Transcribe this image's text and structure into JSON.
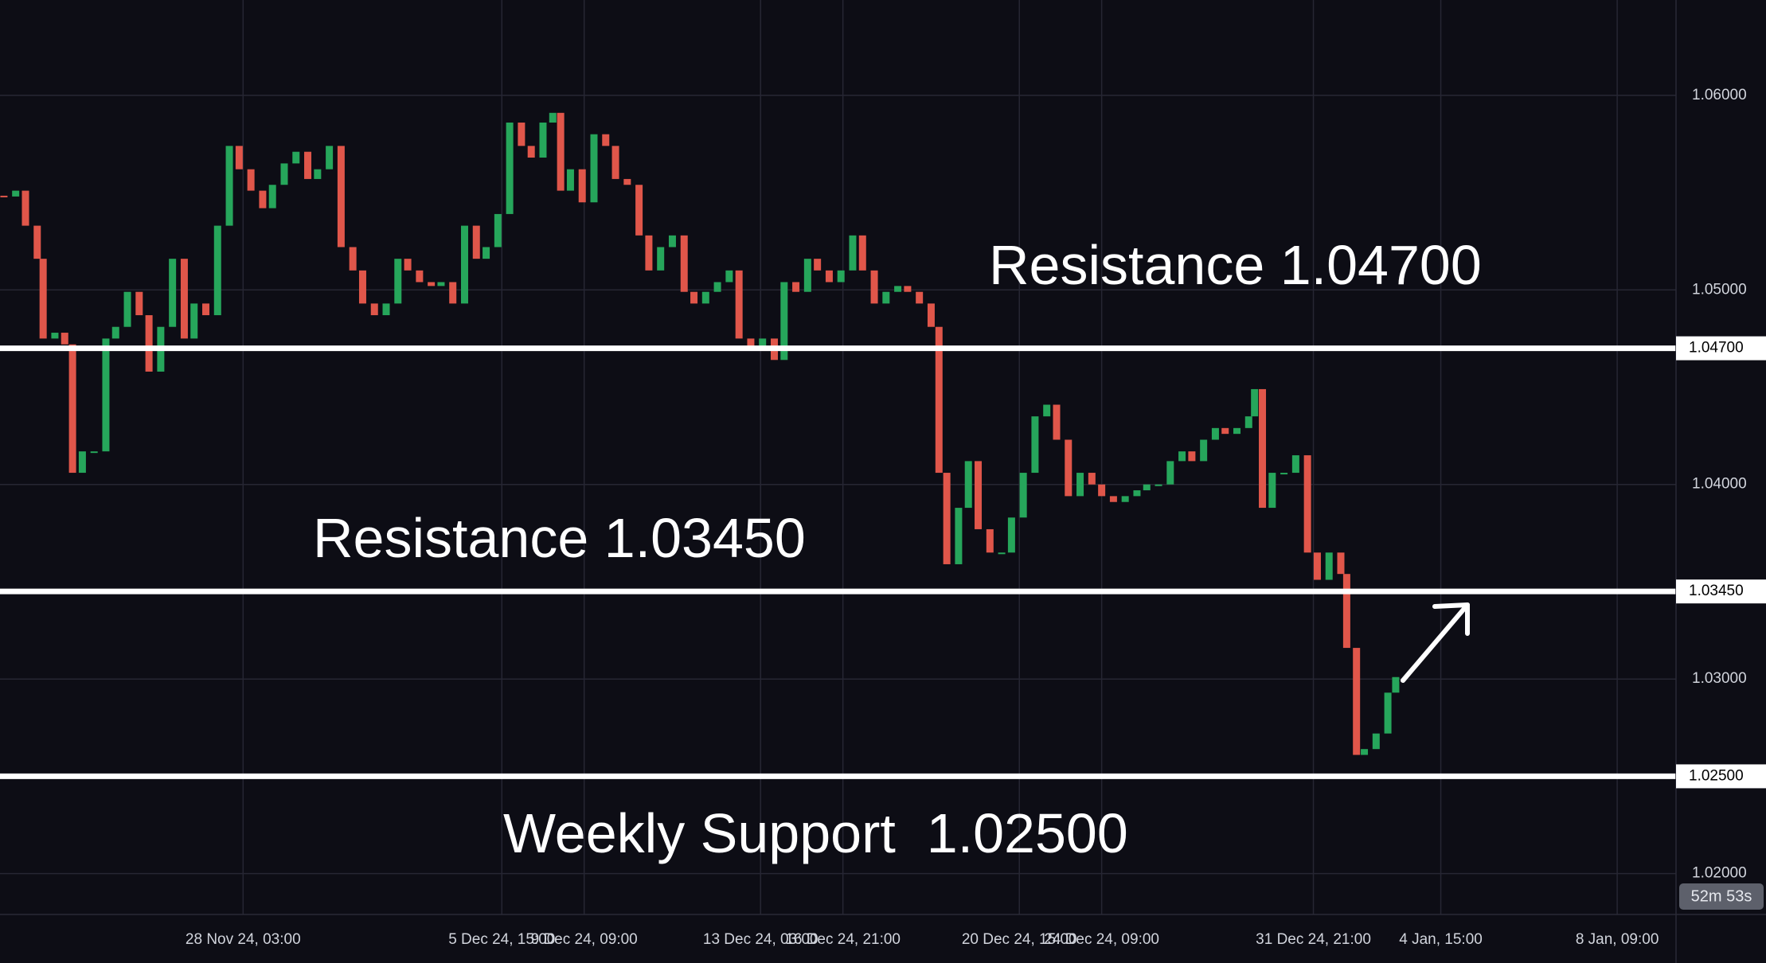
{
  "chart_data": {
    "type": "candlestick",
    "grid": true,
    "background": "#0d0d15",
    "grid_color": "#262633",
    "up_color": "#26a65b",
    "down_color": "#e0564a",
    "level_color": "#ffffff",
    "xlim": [
      -124,
      731
    ],
    "xticks": [
      {
        "value": 0,
        "label": "28 Nov 24, 03:00"
      },
      {
        "value": 132,
        "label": "5 Dec 24, 15:00"
      },
      {
        "value": 174,
        "label": "9 Dec 24, 09:00"
      },
      {
        "value": 264,
        "label": "13 Dec 24, 03:00"
      },
      {
        "value": 306,
        "label": "16 Dec 24, 21:00"
      },
      {
        "value": 396,
        "label": "20 Dec 24, 15:00"
      },
      {
        "value": 438,
        "label": "24 Dec 24, 09:00"
      },
      {
        "value": 546,
        "label": "31 Dec 24, 21:00"
      },
      {
        "value": 611,
        "label": "4 Jan, 15:00"
      },
      {
        "value": 701,
        "label": "8 Jan, 09:00"
      }
    ],
    "ylim": [
      1.0179,
      1.0649
    ],
    "yticks": [
      {
        "value": 1.02,
        "label": "1.02000"
      },
      {
        "value": 1.03,
        "label": "1.03000"
      },
      {
        "value": 1.04,
        "label": "1.04000"
      },
      {
        "value": 1.05,
        "label": "1.05000"
      },
      {
        "value": 1.06,
        "label": "1.06000"
      }
    ],
    "levels": [
      {
        "value": 1.047,
        "label": "1.04700"
      },
      {
        "value": 1.0345,
        "label": "1.03450"
      },
      {
        "value": 1.025,
        "label": "1.02500"
      }
    ],
    "annotations": [
      "Resistance 1.04700",
      "Resistance 1.03450",
      "Weekly Support  1.02500"
    ],
    "countdown": "52m 53s",
    "x": [
      -122,
      -116,
      -111,
      -105,
      -102,
      -96,
      -91,
      -87,
      -82,
      -76,
      -70,
      -65,
      -59,
      -53,
      -48,
      -42,
      -36,
      -30,
      -25,
      -19,
      -13,
      -7,
      -2,
      4,
      10,
      15,
      21,
      27,
      33,
      38,
      44,
      50,
      56,
      61,
      67,
      73,
      79,
      84,
      90,
      96,
      101,
      107,
      113,
      119,
      124,
      130,
      136,
      142,
      147,
      153,
      158,
      162,
      167,
      173,
      179,
      185,
      190,
      196,
      202,
      207,
      213,
      219,
      225,
      230,
      236,
      242,
      248,
      253,
      259,
      265,
      271,
      276,
      282,
      288,
      293,
      299,
      305,
      311,
      316,
      322,
      328,
      334,
      339,
      345,
      351,
      355,
      359,
      365,
      370,
      375,
      381,
      387,
      392,
      398,
      404,
      410,
      415,
      421,
      427,
      433,
      438,
      444,
      450,
      456,
      461,
      467,
      473,
      479,
      484,
      490,
      496,
      501,
      507,
      513,
      516,
      520,
      525,
      531,
      537,
      543,
      548,
      554,
      560,
      563,
      568,
      572,
      578,
      584,
      588
    ],
    "values": [
      1.0548,
      1.0551,
      1.0533,
      1.0516,
      1.0475,
      1.0478,
      1.0472,
      1.0406,
      1.0417,
      1.0417,
      1.0475,
      1.0481,
      1.0499,
      1.0487,
      1.0458,
      1.0481,
      1.0516,
      1.0475,
      1.0493,
      1.0487,
      1.0533,
      1.0574,
      1.0562,
      1.0551,
      1.0542,
      1.0554,
      1.0565,
      1.0571,
      1.0557,
      1.0562,
      1.0574,
      1.0522,
      1.051,
      1.0493,
      1.0487,
      1.0493,
      1.0516,
      1.051,
      1.0504,
      1.0502,
      1.0504,
      1.0493,
      1.0533,
      1.0516,
      1.0522,
      1.0539,
      1.0586,
      1.0574,
      1.0568,
      1.0586,
      1.0591,
      1.0551,
      1.0562,
      1.0545,
      1.058,
      1.0574,
      1.0557,
      1.0554,
      1.0528,
      1.051,
      1.0522,
      1.0528,
      1.0499,
      1.0493,
      1.0499,
      1.0504,
      1.051,
      1.0475,
      1.047,
      1.0475,
      1.0464,
      1.0504,
      1.0499,
      1.0516,
      1.051,
      1.0504,
      1.051,
      1.0528,
      1.051,
      1.0493,
      1.0499,
      1.0502,
      1.0499,
      1.0493,
      1.0481,
      1.0406,
      1.0359,
      1.0388,
      1.0412,
      1.0377,
      1.0365,
      1.0365,
      1.0383,
      1.0406,
      1.0435,
      1.0441,
      1.0423,
      1.0394,
      1.0406,
      1.04,
      1.0394,
      1.0391,
      1.0394,
      1.0397,
      1.04,
      1.04,
      1.0412,
      1.0417,
      1.0412,
      1.0423,
      1.0429,
      1.0426,
      1.0429,
      1.0435,
      1.0449,
      1.0388,
      1.0406,
      1.0406,
      1.0415,
      1.0365,
      1.0351,
      1.0365,
      1.0354,
      1.0316,
      1.0261,
      1.0264,
      1.0272,
      1.0293,
      1.0301
    ]
  }
}
